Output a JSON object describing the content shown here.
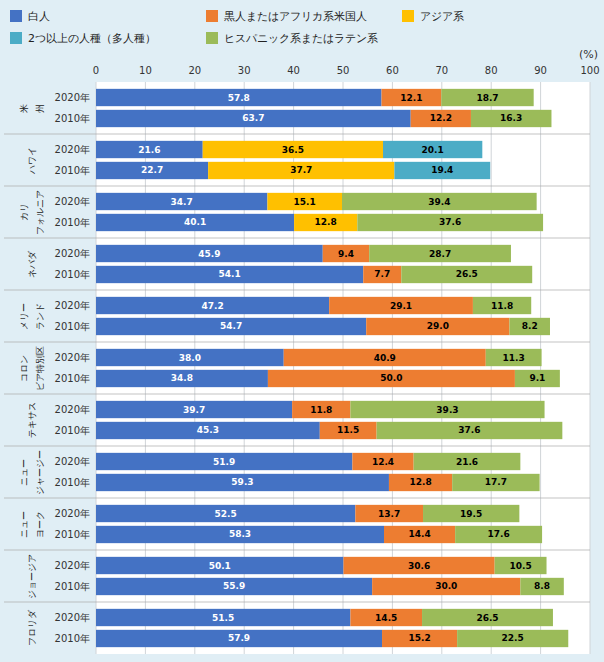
{
  "chart_data": {
    "type": "bar",
    "orientation": "horizontal",
    "stacked": true,
    "data_labels": true,
    "grid": true,
    "legend": "top",
    "xlabel": "(%)",
    "xlim": [
      0,
      100
    ],
    "xticks": [
      0,
      10,
      20,
      30,
      40,
      50,
      60,
      70,
      80,
      90,
      100
    ],
    "groups": [
      {
        "labels": [
          "米",
          "州"
        ]
      },
      {
        "labels": [
          "ハワイ"
        ]
      },
      {
        "labels": [
          "カリ",
          "フォルニア"
        ]
      },
      {
        "labels": [
          "ネバダ"
        ]
      },
      {
        "labels": [
          "メリー",
          "ランド"
        ]
      },
      {
        "labels": [
          "コロン",
          "ビア特別区"
        ]
      },
      {
        "labels": [
          "テキサス"
        ]
      },
      {
        "labels": [
          "ニュー",
          "ジャージー"
        ]
      },
      {
        "labels": [
          "ニュー",
          "ヨーク"
        ]
      },
      {
        "labels": [
          "ジョージア"
        ]
      },
      {
        "labels": [
          "フロリダ"
        ]
      }
    ],
    "categories": [
      "2020年",
      "2010年",
      "2020年",
      "2010年",
      "2020年",
      "2010年",
      "2020年",
      "2010年",
      "2020年",
      "2010年",
      "2020年",
      "2010年",
      "2020年",
      "2010年",
      "2020年",
      "2010年",
      "2020年",
      "2010年",
      "2020年",
      "2010年",
      "2020年",
      "2010年"
    ],
    "series": [
      {
        "name": "白人",
        "color": "#4472C4",
        "values": [
          57.8,
          63.7,
          21.6,
          22.7,
          34.7,
          40.1,
          45.9,
          54.1,
          47.2,
          54.7,
          38.0,
          34.8,
          39.7,
          45.3,
          51.9,
          59.3,
          52.5,
          58.3,
          50.1,
          55.9,
          51.5,
          57.9
        ],
        "value_labels": [
          "57.8",
          "63.7",
          "21.6",
          "22.7",
          "34.7",
          "40.1",
          "45.9",
          "54.1",
          "47.2",
          "54.7",
          "38.0",
          "34.8",
          "39.7",
          "45.3",
          "51.9",
          "59.3",
          "52.5",
          "58.3",
          "50.1",
          "55.9",
          "51.5",
          "57.9"
        ]
      },
      {
        "name": "黒人またはアフリカ系米国人",
        "color": "#ED7D31",
        "values": [
          12.1,
          12.2,
          null,
          null,
          null,
          null,
          9.4,
          7.7,
          29.1,
          29.0,
          40.9,
          50.0,
          11.8,
          11.5,
          12.4,
          12.8,
          13.7,
          14.4,
          30.6,
          30.0,
          14.5,
          15.2
        ],
        "value_labels": [
          "12.1",
          "12.2",
          null,
          null,
          null,
          null,
          "9.4",
          "7.7",
          "29.1",
          "29.0",
          "40.9",
          "50.0",
          "11.8",
          "11.5",
          "12.4",
          "12.8",
          "13.7",
          "14.4",
          "30.6",
          "30.0",
          "14.5",
          "15.2"
        ]
      },
      {
        "name": "アジア系",
        "color": "#FFC000",
        "values": [
          null,
          null,
          36.5,
          37.7,
          15.1,
          12.8,
          null,
          null,
          null,
          null,
          null,
          null,
          null,
          null,
          null,
          null,
          null,
          null,
          null,
          null,
          null,
          null
        ],
        "value_labels": [
          null,
          null,
          "36.5",
          "37.7",
          "15.1",
          "12.8",
          null,
          null,
          null,
          null,
          null,
          null,
          null,
          null,
          null,
          null,
          null,
          null,
          null,
          null,
          null,
          null
        ]
      },
      {
        "name": "2つ以上の人種（多人種）",
        "color": "#4BACC6",
        "values": [
          null,
          null,
          20.1,
          19.4,
          null,
          null,
          null,
          null,
          null,
          null,
          null,
          null,
          null,
          null,
          null,
          null,
          null,
          null,
          null,
          null,
          null,
          null
        ],
        "value_labels": [
          null,
          null,
          "20.1",
          "19.4",
          null,
          null,
          null,
          null,
          null,
          null,
          null,
          null,
          null,
          null,
          null,
          null,
          null,
          null,
          null,
          null,
          null,
          null
        ]
      },
      {
        "name": "ヒスパニック系またはラテン系",
        "color": "#9BBB59",
        "values": [
          18.7,
          16.3,
          null,
          null,
          39.4,
          37.6,
          28.7,
          26.5,
          11.8,
          8.2,
          11.3,
          9.1,
          39.3,
          37.6,
          21.6,
          17.7,
          19.5,
          17.6,
          10.5,
          8.8,
          26.5,
          22.5
        ],
        "value_labels": [
          "18.7",
          "16.3",
          null,
          null,
          "39.4",
          "37.6",
          "28.7",
          "26.5",
          "11.8",
          "8.2",
          "11.3",
          "9.1",
          "39.3",
          "37.6",
          "21.6",
          "17.7",
          "19.5",
          "17.6",
          "10.5",
          "8.8",
          "26.5",
          "22.5"
        ]
      }
    ]
  }
}
